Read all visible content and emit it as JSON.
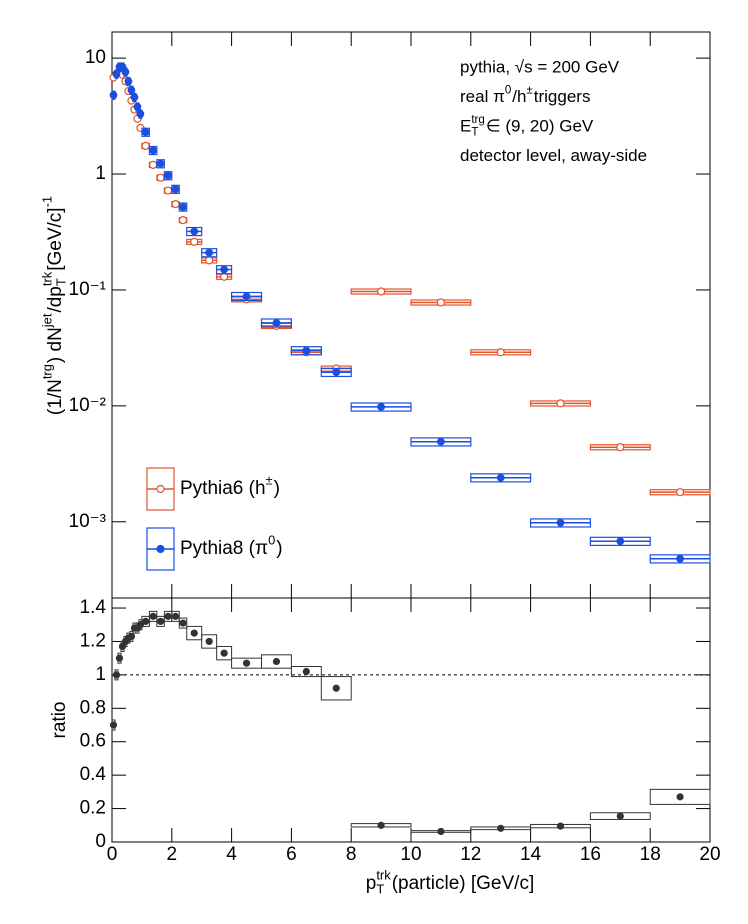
{
  "chart_data": [
    {
      "type": "scatter",
      "log_y": true,
      "annotations": [
        [
          "pythia, √s = 200 GeV"
        ],
        [
          "real π",
          {
            "sup": "0"
          },
          "/h",
          {
            "sup": "±"
          },
          " triggers"
        ],
        [
          "E",
          {
            "sup": "trg",
            "sub": "T"
          },
          " ∈ (9, 20) GeV"
        ],
        [
          "detector level, away-side"
        ]
      ],
      "y_label": [
        "(1/N",
        {
          "sup": "trg"
        },
        ") dN",
        {
          "sup": "jet"
        },
        "/dp",
        {
          "sup": "trk",
          "sub": "T"
        },
        " [GeV/c]",
        {
          "sup": "-1"
        }
      ],
      "bins": [
        0,
        0.1,
        0.2,
        0.3,
        0.4,
        0.5,
        0.6,
        0.7,
        0.8,
        0.9,
        1.0,
        1.25,
        1.5,
        1.75,
        2,
        2.25,
        2.5,
        3,
        3.5,
        4,
        5,
        6,
        7,
        8,
        10,
        12,
        14,
        16,
        18,
        20
      ],
      "xlim": [
        0,
        20
      ],
      "xticks": [
        0,
        2,
        4,
        6,
        8,
        10,
        12,
        14,
        16,
        18,
        20
      ],
      "ylim": [
        0.00022,
        16.8
      ],
      "yticks": [
        {
          "value": 0.001,
          "label": "10⁻³"
        },
        {
          "value": 0.01,
          "label": "10⁻²"
        },
        {
          "value": 0.1,
          "label": "10⁻¹"
        },
        1,
        10
      ],
      "series": [
        {
          "name": [
            "Pythia6 (h",
            {
              "sup": "±"
            },
            ")"
          ],
          "color": "#e2552b",
          "marker": "open",
          "sys_rel": 0.05,
          "values": [
            6.8,
            7.3,
            7.6,
            7.2,
            6.3,
            5.2,
            4.3,
            3.6,
            3.0,
            2.5,
            1.75,
            1.2,
            0.93,
            0.72,
            0.55,
            0.4,
            0.26,
            0.18,
            0.13,
            0.083,
            0.049,
            0.029,
            0.021,
            0.097,
            0.078,
            0.029,
            0.0105,
            0.0044,
            0.0018
          ]
        },
        {
          "name": [
            "Pythia8 (π",
            {
              "sup": "0"
            },
            ")"
          ],
          "color": "#1a4fe0",
          "marker": "filled",
          "sys_rel": 0.08,
          "values": [
            4.8,
            7.3,
            8.4,
            8.4,
            7.6,
            6.3,
            5.3,
            4.6,
            3.8,
            3.3,
            2.3,
            1.6,
            1.23,
            0.97,
            0.74,
            0.52,
            0.32,
            0.21,
            0.15,
            0.088,
            0.052,
            0.03,
            0.0195,
            0.0098,
            0.0049,
            0.0024,
            0.00098,
            0.00068,
            0.00048
          ]
        }
      ]
    },
    {
      "type": "scatter",
      "y_label": [
        "ratio"
      ],
      "x_label": [
        "p",
        {
          "sup": "trk",
          "sub": "T"
        },
        "(particle) [GeV/c]"
      ],
      "bins": [
        0,
        0.1,
        0.2,
        0.3,
        0.4,
        0.5,
        0.6,
        0.7,
        0.8,
        0.9,
        1.0,
        1.25,
        1.5,
        1.75,
        2,
        2.25,
        2.5,
        3,
        3.5,
        4,
        5,
        6,
        7,
        8,
        10,
        12,
        14,
        16,
        18,
        20
      ],
      "xlim": [
        0,
        20
      ],
      "xticks": [
        0,
        2,
        4,
        6,
        8,
        10,
        12,
        14,
        16,
        18,
        20
      ],
      "ylim": [
        0,
        1.46
      ],
      "yticks": [
        0,
        0.2,
        0.4,
        0.6,
        0.8,
        1,
        1.2,
        1.4
      ],
      "reference_line": 1,
      "color": "#333333",
      "values": [
        0.7,
        1.0,
        1.1,
        1.17,
        1.2,
        1.22,
        1.23,
        1.28,
        1.28,
        1.3,
        1.32,
        1.35,
        1.32,
        1.35,
        1.35,
        1.31,
        1.25,
        1.2,
        1.13,
        1.07,
        1.08,
        1.02,
        0.92,
        0.1,
        0.063,
        0.082,
        0.095,
        0.155,
        0.27
      ],
      "sys": [
        0.03,
        0.03,
        0.03,
        0.03,
        0.03,
        0.03,
        0.03,
        0.03,
        0.03,
        0.03,
        0.03,
        0.03,
        0.03,
        0.03,
        0.03,
        0.03,
        0.04,
        0.04,
        0.04,
        0.03,
        0.04,
        0.03,
        0.07,
        0.01,
        0.005,
        0.008,
        0.01,
        0.02,
        0.045
      ]
    }
  ]
}
